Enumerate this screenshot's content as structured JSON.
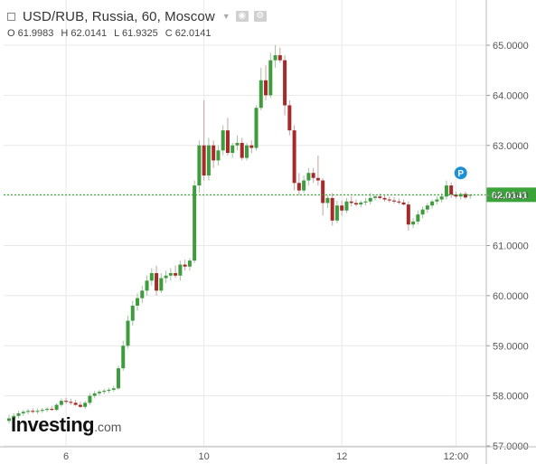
{
  "header": {
    "symbol": "USD/RUB, Russia, 60, Moscow",
    "ohlc": [
      {
        "label": "O",
        "value": "61.9983"
      },
      {
        "label": "H",
        "value": "62.0141"
      },
      {
        "label": "L",
        "value": "61.9325"
      },
      {
        "label": "C",
        "value": "62.0141"
      }
    ]
  },
  "logo": {
    "main": "Investing",
    "domain": ".com"
  },
  "colors": {
    "up": "#3e9c3e",
    "down": "#a52a2a",
    "price_line": "#2ca02c",
    "price_badge": "#3aa33a",
    "marker": "#1e90d6",
    "grid": "#e8e8e8"
  },
  "chart_data": {
    "type": "candlestick",
    "title": "USD/RUB, Russia, 60, Moscow",
    "ylim": [
      57.0,
      65.5
    ],
    "y_ticks": [
      57.0,
      58.0,
      59.0,
      60.0,
      61.0,
      62.0,
      63.0,
      64.0,
      65.0
    ],
    "y_tick_labels": [
      "57.0000",
      "58.0000",
      "59.0000",
      "60.0000",
      "61.0000",
      "62.0000",
      "63.0000",
      "64.0000",
      "65.0000"
    ],
    "x_ticks": [
      {
        "bar": 12,
        "label": "6"
      },
      {
        "bar": 41,
        "label": "10"
      },
      {
        "bar": 70,
        "label": "12"
      },
      {
        "bar": 94,
        "label": "12:00"
      }
    ],
    "last_price": 62.0141,
    "last_price_label": "62.0141",
    "marker": {
      "bar": 95,
      "value": 62.45,
      "label": "P"
    },
    "candles": [
      [
        57.5,
        57.62,
        57.45,
        57.55
      ],
      [
        57.55,
        57.65,
        57.5,
        57.6
      ],
      [
        57.6,
        57.7,
        57.55,
        57.65
      ],
      [
        57.65,
        57.72,
        57.6,
        57.68
      ],
      [
        57.68,
        57.74,
        57.63,
        57.7
      ],
      [
        57.7,
        57.75,
        57.65,
        57.68
      ],
      [
        57.68,
        57.75,
        57.64,
        57.7
      ],
      [
        57.7,
        57.76,
        57.66,
        57.72
      ],
      [
        57.72,
        57.78,
        57.68,
        57.74
      ],
      [
        57.74,
        57.8,
        57.7,
        57.72
      ],
      [
        57.72,
        57.85,
        57.7,
        57.82
      ],
      [
        57.82,
        57.95,
        57.78,
        57.9
      ],
      [
        57.9,
        57.96,
        57.84,
        57.88
      ],
      [
        57.88,
        57.94,
        57.82,
        57.86
      ],
      [
        57.86,
        57.92,
        57.8,
        57.82
      ],
      [
        57.82,
        57.88,
        57.76,
        57.78
      ],
      [
        57.78,
        57.9,
        57.74,
        57.86
      ],
      [
        57.86,
        58.05,
        57.82,
        58.0
      ],
      [
        58.0,
        58.1,
        57.95,
        58.05
      ],
      [
        58.05,
        58.12,
        58.0,
        58.08
      ],
      [
        58.08,
        58.14,
        58.03,
        58.1
      ],
      [
        58.1,
        58.16,
        58.05,
        58.12
      ],
      [
        58.12,
        58.2,
        58.08,
        58.15
      ],
      [
        58.15,
        58.6,
        58.12,
        58.55
      ],
      [
        58.55,
        59.1,
        58.5,
        59.0
      ],
      [
        59.0,
        59.6,
        58.95,
        59.5
      ],
      [
        59.5,
        59.9,
        59.4,
        59.8
      ],
      [
        59.8,
        60.05,
        59.7,
        59.95
      ],
      [
        59.95,
        60.2,
        59.85,
        60.1
      ],
      [
        60.1,
        60.4,
        60.0,
        60.3
      ],
      [
        60.3,
        60.55,
        60.2,
        60.45
      ],
      [
        60.45,
        60.6,
        60.0,
        60.1
      ],
      [
        60.1,
        60.45,
        60.05,
        60.35
      ],
      [
        60.35,
        60.5,
        60.25,
        60.4
      ],
      [
        60.4,
        60.55,
        60.3,
        60.45
      ],
      [
        60.45,
        60.6,
        60.35,
        60.4
      ],
      [
        60.4,
        60.7,
        60.3,
        60.62
      ],
      [
        60.62,
        60.72,
        60.5,
        60.58
      ],
      [
        60.58,
        60.75,
        60.5,
        60.7
      ],
      [
        60.7,
        62.3,
        60.65,
        62.2
      ],
      [
        62.2,
        63.1,
        62.05,
        63.0
      ],
      [
        63.0,
        63.9,
        62.3,
        62.4
      ],
      [
        62.4,
        63.15,
        62.3,
        63.0
      ],
      [
        63.0,
        63.1,
        62.55,
        62.7
      ],
      [
        62.7,
        63.0,
        62.6,
        62.9
      ],
      [
        62.9,
        63.4,
        62.8,
        63.3
      ],
      [
        63.3,
        63.55,
        62.8,
        62.85
      ],
      [
        62.85,
        63.05,
        62.75,
        63.0
      ],
      [
        63.0,
        63.2,
        62.9,
        63.05
      ],
      [
        63.05,
        63.15,
        62.7,
        62.75
      ],
      [
        62.75,
        63.05,
        62.7,
        63.0
      ],
      [
        63.0,
        63.1,
        62.85,
        62.95
      ],
      [
        62.95,
        63.8,
        62.9,
        63.75
      ],
      [
        63.75,
        64.55,
        63.7,
        64.3
      ],
      [
        64.3,
        64.6,
        63.9,
        64.0
      ],
      [
        64.0,
        64.85,
        63.95,
        64.7
      ],
      [
        64.7,
        65.0,
        64.55,
        64.8
      ],
      [
        64.8,
        64.95,
        64.65,
        64.7
      ],
      [
        64.7,
        64.8,
        63.6,
        63.8
      ],
      [
        63.8,
        63.9,
        63.2,
        63.3
      ],
      [
        63.3,
        63.4,
        62.1,
        62.25
      ],
      [
        62.25,
        62.45,
        62.0,
        62.1
      ],
      [
        62.1,
        62.4,
        62.05,
        62.3
      ],
      [
        62.3,
        62.55,
        62.2,
        62.45
      ],
      [
        62.45,
        62.55,
        62.25,
        62.35
      ],
      [
        62.35,
        62.8,
        62.2,
        62.3
      ],
      [
        62.3,
        62.35,
        61.6,
        61.85
      ],
      [
        61.85,
        62.0,
        61.75,
        61.95
      ],
      [
        61.95,
        62.05,
        61.4,
        61.5
      ],
      [
        61.5,
        61.9,
        61.45,
        61.8
      ],
      [
        61.8,
        61.9,
        61.6,
        61.7
      ],
      [
        61.7,
        61.95,
        61.65,
        61.88
      ],
      [
        61.88,
        61.98,
        61.78,
        61.85
      ],
      [
        61.85,
        61.92,
        61.78,
        61.82
      ],
      [
        61.82,
        61.9,
        61.76,
        61.86
      ],
      [
        61.86,
        61.95,
        61.8,
        61.88
      ],
      [
        61.88,
        62.05,
        61.82,
        61.95
      ],
      [
        61.95,
        62.02,
        61.9,
        61.98
      ],
      [
        61.98,
        62.04,
        61.92,
        61.95
      ],
      [
        61.95,
        62.0,
        61.88,
        61.92
      ],
      [
        61.92,
        61.98,
        61.86,
        61.9
      ],
      [
        61.9,
        61.96,
        61.84,
        61.88
      ],
      [
        61.88,
        61.94,
        61.82,
        61.86
      ],
      [
        61.86,
        61.92,
        61.8,
        61.82
      ],
      [
        61.82,
        61.88,
        61.3,
        61.42
      ],
      [
        61.42,
        61.55,
        61.35,
        61.48
      ],
      [
        61.48,
        61.7,
        61.42,
        61.62
      ],
      [
        61.62,
        61.78,
        61.55,
        61.72
      ],
      [
        61.72,
        61.85,
        61.65,
        61.8
      ],
      [
        61.8,
        61.92,
        61.74,
        61.88
      ],
      [
        61.88,
        61.98,
        61.82,
        61.92
      ],
      [
        61.92,
        62.05,
        61.86,
        61.98
      ],
      [
        61.98,
        62.3,
        61.92,
        62.2
      ],
      [
        62.2,
        62.26,
        61.95,
        62.02
      ],
      [
        62.02,
        62.08,
        61.94,
        61.98
      ],
      [
        61.98,
        62.06,
        61.92,
        62.03
      ],
      [
        62.03,
        62.08,
        61.93,
        61.96
      ],
      [
        61.9983,
        62.0141,
        61.9325,
        62.0141
      ]
    ]
  }
}
